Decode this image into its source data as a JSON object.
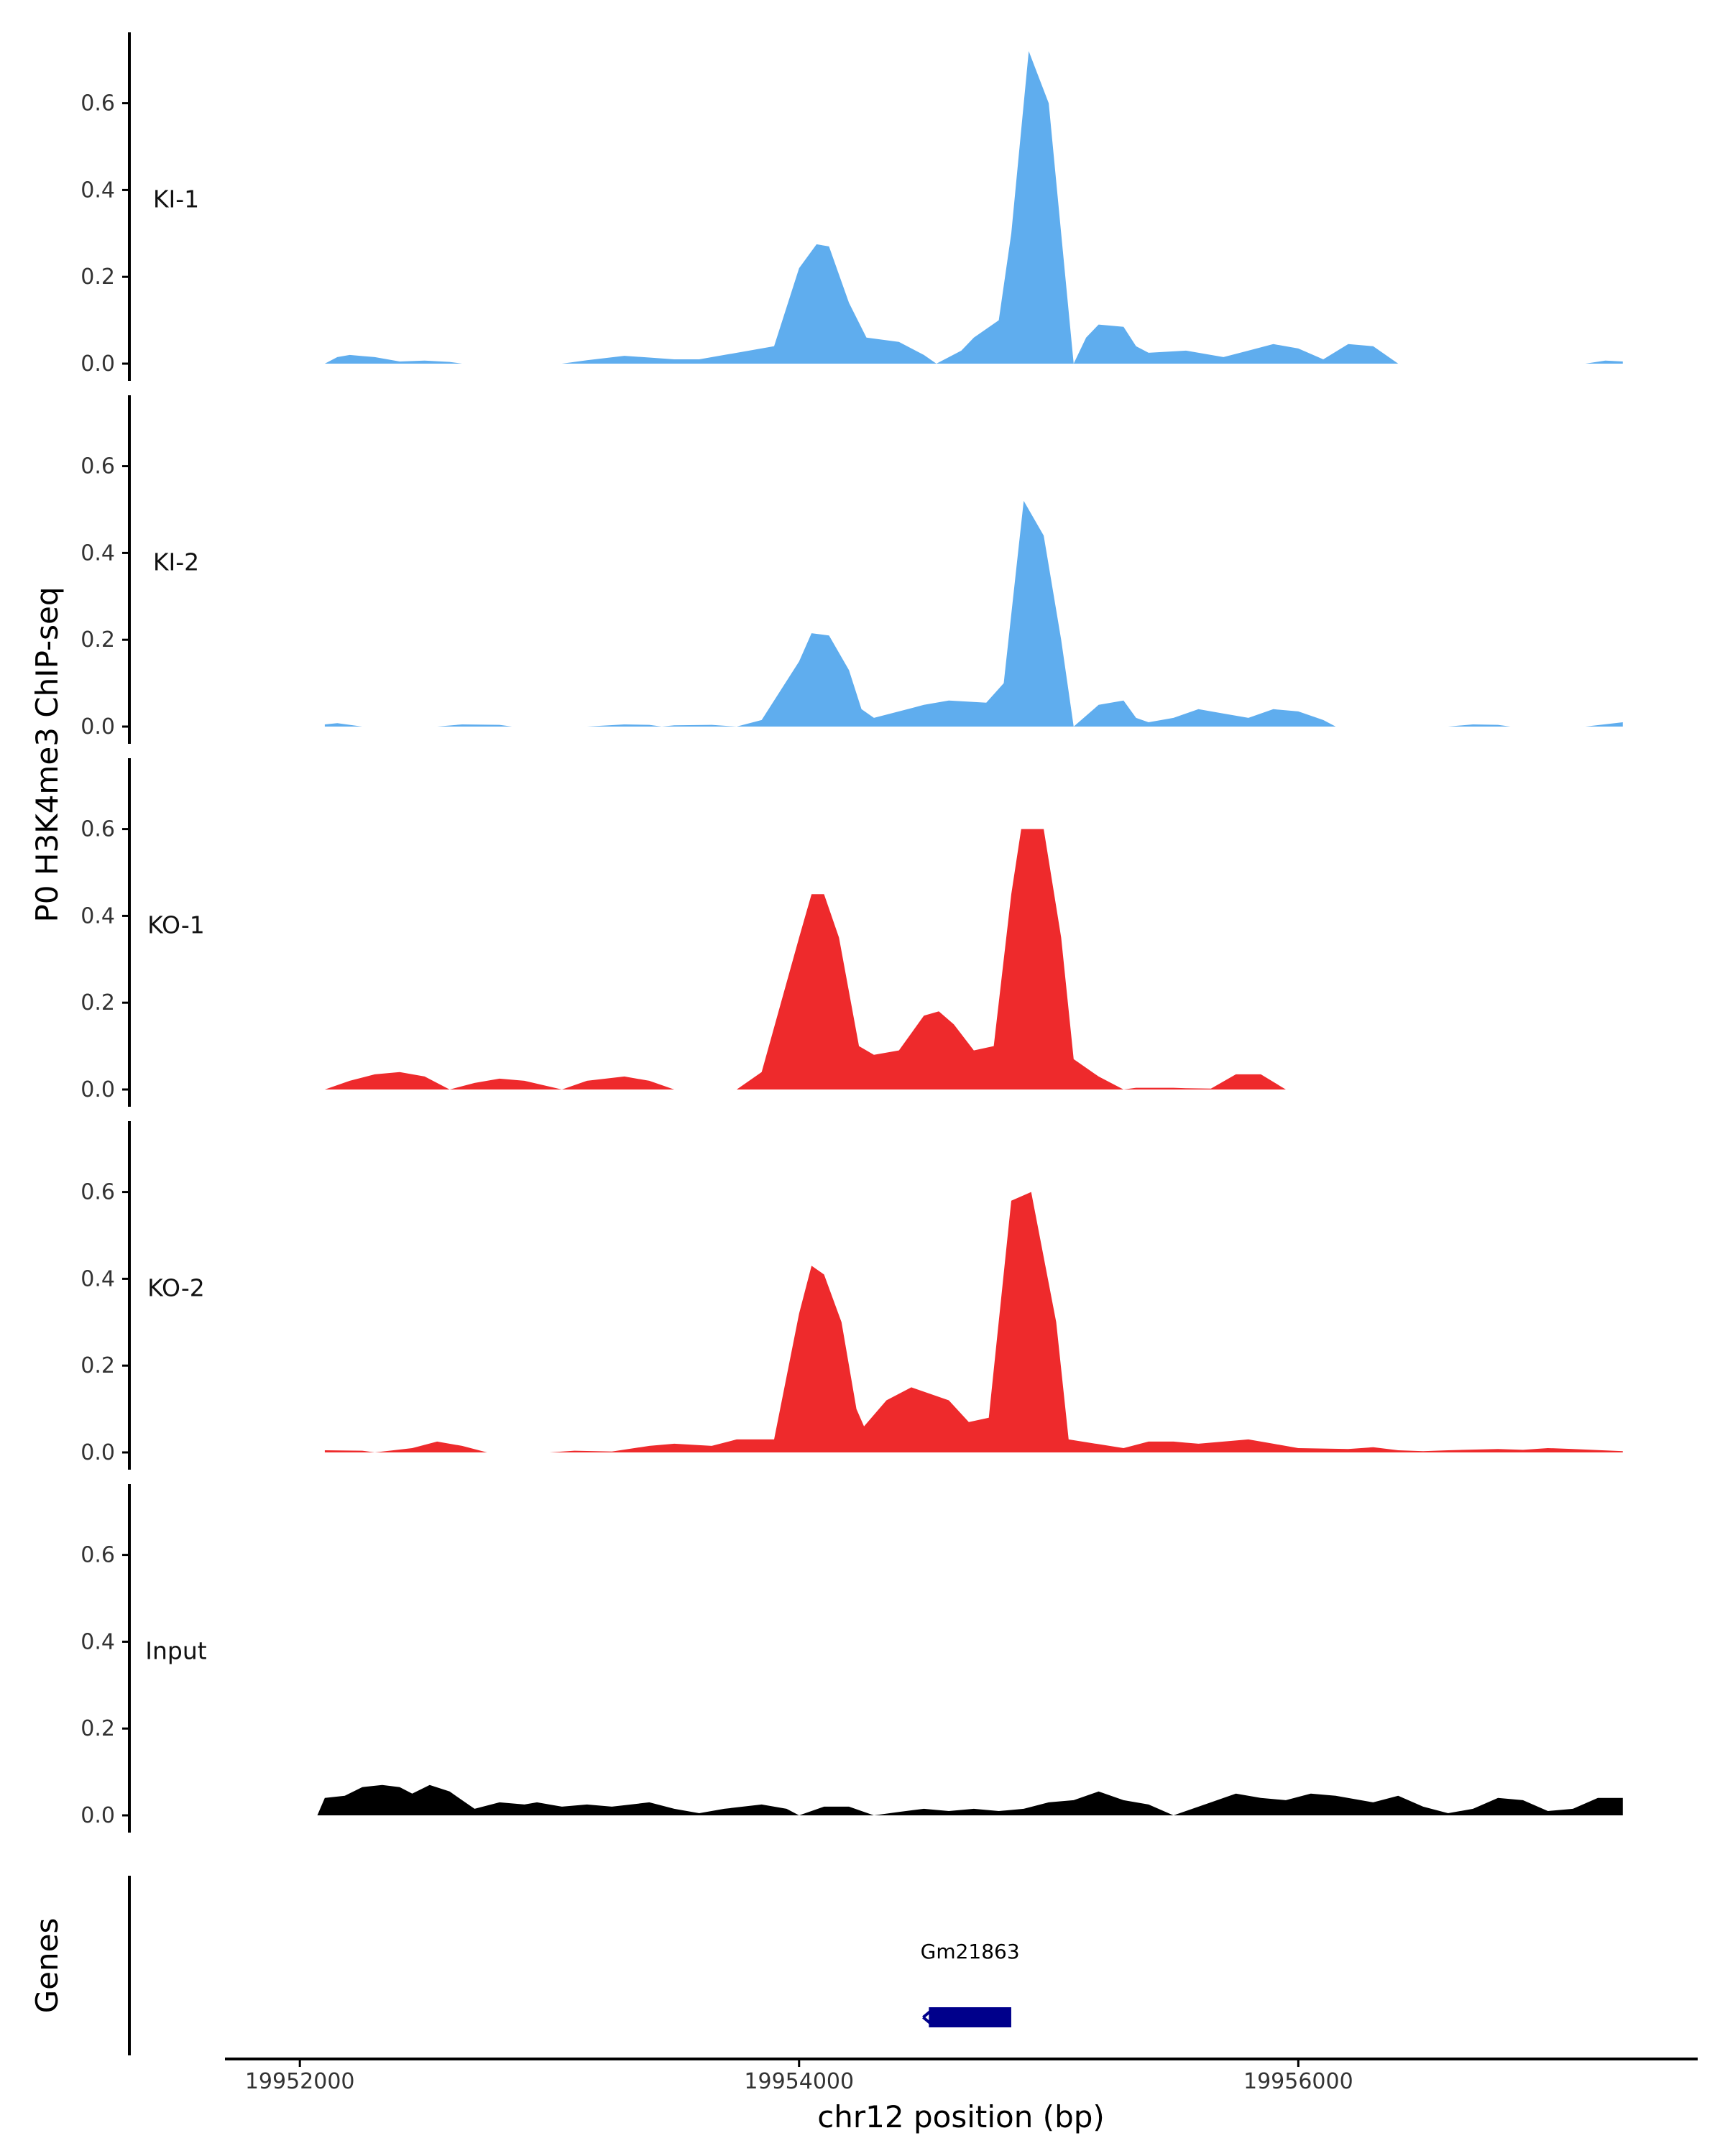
{
  "chart_data": {
    "type": "area",
    "ylabel": "P0 H3K4me3 ChIP-seq",
    "xlabel": "chr12 position (bp)",
    "xlim": [
      19951700,
      19957600
    ],
    "ylim": [
      -0.03,
      0.76
    ],
    "y_ticks": [
      "0.0",
      "0.2",
      "0.4",
      "0.6"
    ],
    "x_ticks": [
      {
        "value": 19952000,
        "label": "19952000"
      },
      {
        "value": 19954000,
        "label": "19954000"
      },
      {
        "value": 19956000,
        "label": "19956000"
      }
    ],
    "grid": false,
    "colors": {
      "KI": "#5fadee",
      "KO": "#ee2a2c",
      "Input": "#000000",
      "gene": "#00008b"
    },
    "series": [
      {
        "name": "KI-1",
        "color": "#5fadee",
        "points": [
          [
            19952100,
            0
          ],
          [
            19952150,
            0.015
          ],
          [
            19952200,
            0.02
          ],
          [
            19952300,
            0.015
          ],
          [
            19952400,
            0.005
          ],
          [
            19952500,
            0.007
          ],
          [
            19952600,
            0.004
          ],
          [
            19952650,
            0
          ],
          [
            19953050,
            0
          ],
          [
            19953150,
            0.008
          ],
          [
            19953300,
            0.018
          ],
          [
            19953400,
            0.014
          ],
          [
            19953500,
            0.01
          ],
          [
            19953600,
            0.01
          ],
          [
            19953700,
            0.02
          ],
          [
            19953800,
            0.03
          ],
          [
            19953900,
            0.04
          ],
          [
            19954000,
            0.22
          ],
          [
            19954070,
            0.275
          ],
          [
            19954120,
            0.27
          ],
          [
            19954200,
            0.14
          ],
          [
            19954270,
            0.06
          ],
          [
            19954400,
            0.05
          ],
          [
            19954500,
            0.02
          ],
          [
            19954550,
            0
          ],
          [
            19954650,
            0.03
          ],
          [
            19954700,
            0.06
          ],
          [
            19954800,
            0.1
          ],
          [
            19954850,
            0.3
          ],
          [
            19954920,
            0.72
          ],
          [
            19955000,
            0.6
          ],
          [
            19955050,
            0.3
          ],
          [
            19955100,
            0
          ],
          [
            19955150,
            0.06
          ],
          [
            19955200,
            0.09
          ],
          [
            19955300,
            0.085
          ],
          [
            19955350,
            0.04
          ],
          [
            19955400,
            0.025
          ],
          [
            19955550,
            0.03
          ],
          [
            19955700,
            0.015
          ],
          [
            19955800,
            0.03
          ],
          [
            19955900,
            0.045
          ],
          [
            19956000,
            0.035
          ],
          [
            19956100,
            0.01
          ],
          [
            19956200,
            0.045
          ],
          [
            19956300,
            0.04
          ],
          [
            19956350,
            0.02
          ],
          [
            19956400,
            0
          ],
          [
            19957150,
            0
          ],
          [
            19957230,
            0.007
          ],
          [
            19957300,
            0.005
          ]
        ]
      },
      {
        "name": "KI-2",
        "color": "#5fadee",
        "points": [
          [
            19952100,
            0.005
          ],
          [
            19952150,
            0.008
          ],
          [
            19952250,
            0
          ],
          [
            19952550,
            0
          ],
          [
            19952650,
            0.005
          ],
          [
            19952800,
            0.004
          ],
          [
            19952850,
            0
          ],
          [
            19953150,
            0
          ],
          [
            19953300,
            0.005
          ],
          [
            19953400,
            0.004
          ],
          [
            19953450,
            0
          ],
          [
            19953500,
            0.003
          ],
          [
            19953650,
            0.004
          ],
          [
            19953750,
            0
          ],
          [
            19953850,
            0.015
          ],
          [
            19954000,
            0.15
          ],
          [
            19954050,
            0.215
          ],
          [
            19954120,
            0.21
          ],
          [
            19954200,
            0.13
          ],
          [
            19954250,
            0.04
          ],
          [
            19954300,
            0.02
          ],
          [
            19954400,
            0.035
          ],
          [
            19954500,
            0.05
          ],
          [
            19954600,
            0.06
          ],
          [
            19954750,
            0.055
          ],
          [
            19954820,
            0.1
          ],
          [
            19954900,
            0.52
          ],
          [
            19954980,
            0.44
          ],
          [
            19955050,
            0.2
          ],
          [
            19955100,
            0
          ],
          [
            19955200,
            0.05
          ],
          [
            19955300,
            0.06
          ],
          [
            19955350,
            0.02
          ],
          [
            19955400,
            0.01
          ],
          [
            19955500,
            0.02
          ],
          [
            19955600,
            0.04
          ],
          [
            19955700,
            0.03
          ],
          [
            19955800,
            0.02
          ],
          [
            19955900,
            0.04
          ],
          [
            19956000,
            0.035
          ],
          [
            19956100,
            0.015
          ],
          [
            19956150,
            0
          ],
          [
            19956600,
            0
          ],
          [
            19956700,
            0.005
          ],
          [
            19956800,
            0.004
          ],
          [
            19956850,
            0
          ],
          [
            19957150,
            0
          ],
          [
            19957300,
            0.01
          ]
        ]
      },
      {
        "name": "KO-1",
        "color": "#ee2a2c",
        "points": [
          [
            19952100,
            0
          ],
          [
            19952200,
            0.02
          ],
          [
            19952300,
            0.035
          ],
          [
            19952400,
            0.04
          ],
          [
            19952500,
            0.03
          ],
          [
            19952600,
            0
          ],
          [
            19952700,
            0.015
          ],
          [
            19952800,
            0.025
          ],
          [
            19952900,
            0.02
          ],
          [
            19953050,
            0
          ],
          [
            19953150,
            0.02
          ],
          [
            19953300,
            0.03
          ],
          [
            19953400,
            0.02
          ],
          [
            19953500,
            0
          ],
          [
            19953750,
            0
          ],
          [
            19953850,
            0.04
          ],
          [
            19954000,
            0.35
          ],
          [
            19954050,
            0.45
          ],
          [
            19954100,
            0.45
          ],
          [
            19954160,
            0.35
          ],
          [
            19954240,
            0.1
          ],
          [
            19954300,
            0.08
          ],
          [
            19954400,
            0.09
          ],
          [
            19954500,
            0.17
          ],
          [
            19954560,
            0.18
          ],
          [
            19954620,
            0.15
          ],
          [
            19954700,
            0.09
          ],
          [
            19954780,
            0.1
          ],
          [
            19954850,
            0.45
          ],
          [
            19954890,
            0.6
          ],
          [
            19954980,
            0.6
          ],
          [
            19955050,
            0.35
          ],
          [
            19955100,
            0.07
          ],
          [
            19955200,
            0.03
          ],
          [
            19955300,
            0
          ],
          [
            19955350,
            0.004
          ],
          [
            19955500,
            0.004
          ],
          [
            19955550,
            0.003
          ],
          [
            19955650,
            0.002
          ],
          [
            19955750,
            0.035
          ],
          [
            19955850,
            0.035
          ],
          [
            19955950,
            0
          ]
        ]
      },
      {
        "name": "KO-2",
        "color": "#ee2a2c",
        "points": [
          [
            19952100,
            0.005
          ],
          [
            19952250,
            0.004
          ],
          [
            19952300,
            0
          ],
          [
            19952450,
            0.01
          ],
          [
            19952550,
            0.025
          ],
          [
            19952650,
            0.015
          ],
          [
            19952750,
            0
          ],
          [
            19953000,
            0
          ],
          [
            19953100,
            0.004
          ],
          [
            19953250,
            0.002
          ],
          [
            19953400,
            0.015
          ],
          [
            19953500,
            0.02
          ],
          [
            19953650,
            0.015
          ],
          [
            19953750,
            0.03
          ],
          [
            19953900,
            0.03
          ],
          [
            19954000,
            0.32
          ],
          [
            19954050,
            0.43
          ],
          [
            19954100,
            0.41
          ],
          [
            19954170,
            0.3
          ],
          [
            19954230,
            0.1
          ],
          [
            19954260,
            0.06
          ],
          [
            19954350,
            0.12
          ],
          [
            19954450,
            0.15
          ],
          [
            19954600,
            0.12
          ],
          [
            19954680,
            0.07
          ],
          [
            19954760,
            0.08
          ],
          [
            19954850,
            0.58
          ],
          [
            19954930,
            0.6
          ],
          [
            19955030,
            0.3
          ],
          [
            19955080,
            0.03
          ],
          [
            19955300,
            0.01
          ],
          [
            19955400,
            0.025
          ],
          [
            19955500,
            0.025
          ],
          [
            19955600,
            0.02
          ],
          [
            19955700,
            0.025
          ],
          [
            19955800,
            0.03
          ],
          [
            19955900,
            0.02
          ],
          [
            19956000,
            0.01
          ],
          [
            19956200,
            0.008
          ],
          [
            19956300,
            0.012
          ],
          [
            19956400,
            0.005
          ],
          [
            19956500,
            0.003
          ],
          [
            19956600,
            0.005
          ],
          [
            19956800,
            0.008
          ],
          [
            19956900,
            0.006
          ],
          [
            19957000,
            0.01
          ],
          [
            19957100,
            0.008
          ],
          [
            19957300,
            0.003
          ]
        ]
      },
      {
        "name": "Input",
        "color": "#000000",
        "points": [
          [
            19952070,
            0
          ],
          [
            19952100,
            0.04
          ],
          [
            19952180,
            0.045
          ],
          [
            19952250,
            0.065
          ],
          [
            19952330,
            0.07
          ],
          [
            19952400,
            0.065
          ],
          [
            19952450,
            0.05
          ],
          [
            19952520,
            0.07
          ],
          [
            19952600,
            0.055
          ],
          [
            19952650,
            0.035
          ],
          [
            19952700,
            0.015
          ],
          [
            19952800,
            0.03
          ],
          [
            19952900,
            0.025
          ],
          [
            19952950,
            0.03
          ],
          [
            19953050,
            0.02
          ],
          [
            19953150,
            0.025
          ],
          [
            19953250,
            0.02
          ],
          [
            19953400,
            0.03
          ],
          [
            19953500,
            0.015
          ],
          [
            19953600,
            0.005
          ],
          [
            19953700,
            0.015
          ],
          [
            19953850,
            0.025
          ],
          [
            19953950,
            0.015
          ],
          [
            19954000,
            0
          ],
          [
            19954100,
            0.02
          ],
          [
            19954200,
            0.02
          ],
          [
            19954300,
            0
          ],
          [
            19954400,
            0.008
          ],
          [
            19954500,
            0.015
          ],
          [
            19954600,
            0.01
          ],
          [
            19954700,
            0.015
          ],
          [
            19954800,
            0.01
          ],
          [
            19954900,
            0.015
          ],
          [
            19955000,
            0.03
          ],
          [
            19955100,
            0.035
          ],
          [
            19955200,
            0.055
          ],
          [
            19955300,
            0.035
          ],
          [
            19955400,
            0.025
          ],
          [
            19955500,
            0
          ],
          [
            19955650,
            0.03
          ],
          [
            19955750,
            0.05
          ],
          [
            19955850,
            0.04
          ],
          [
            19955950,
            0.035
          ],
          [
            19956050,
            0.05
          ],
          [
            19956150,
            0.045
          ],
          [
            19956300,
            0.03
          ],
          [
            19956400,
            0.045
          ],
          [
            19956500,
            0.02
          ],
          [
            19956600,
            0.005
          ],
          [
            19956700,
            0.015
          ],
          [
            19956800,
            0.04
          ],
          [
            19956900,
            0.035
          ],
          [
            19957000,
            0.01
          ],
          [
            19957100,
            0.015
          ],
          [
            19957200,
            0.04
          ],
          [
            19957300,
            0.04
          ]
        ]
      }
    ],
    "genes": {
      "title": "Genes",
      "items": [
        {
          "name": "Gm21863",
          "start": 19954520,
          "end": 19954850,
          "strand": "-"
        }
      ]
    }
  }
}
